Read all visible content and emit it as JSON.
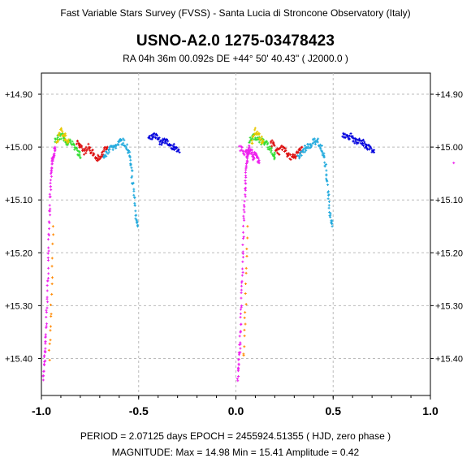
{
  "header": {
    "survey": "Fast Variable Stars Survey (FVSS) - Santa Lucia di Stroncone Observatory (Italy)",
    "star_id": "USNO-A2.0  1275-03478423",
    "coordinates": "RA  04h 36m 00.092s    DE  +44° 50' 40.43\"     ( J2000.0 )"
  },
  "footer": {
    "line1": "PERIOD = 2.07125 days      EPOCH = 2455924.51355  ( HJD, zero phase )",
    "line2": "MAGNITUDE:  Max = 14.98    Min = 15.41    Amplitude = 0.42"
  },
  "colors": {
    "magenta": "#ee22ee",
    "green": "#33dd33",
    "yellow": "#e8c800",
    "orange": "#ff8800",
    "red": "#dd1111",
    "cyan": "#22aadd",
    "blue": "#0000dd",
    "grid": "#bbbbbb"
  },
  "chart_data": {
    "type": "scatter",
    "title": "USNO-A2.0  1275-03478423",
    "xlabel": "",
    "ylabel": "",
    "xlim": [
      -1.0,
      1.0
    ],
    "ylim": [
      14.86,
      15.47
    ],
    "y_inverted": true,
    "grid": true,
    "x_ticks": [
      "-1.0",
      "-0.5",
      "0.0",
      "0.5",
      "1.0"
    ],
    "x_tick_values": [
      -1.0,
      -0.5,
      0.0,
      0.5,
      1.0
    ],
    "y_ticks": [
      "+14.90",
      "+15.00",
      "+15.10",
      "+15.20",
      "+15.30",
      "+15.40"
    ],
    "y_tick_values": [
      14.9,
      15.0,
      15.1,
      15.2,
      15.3,
      15.4
    ],
    "series": [
      {
        "color": "magenta",
        "phase_ranges": [
          [
            -0.01,
            0.01
          ],
          [
            0.08,
            0.12
          ]
        ],
        "x": [
          -0.99,
          -0.985,
          -0.98,
          -0.975,
          -0.97,
          -0.965,
          -0.96,
          -0.955,
          -0.95,
          -0.945,
          -0.94,
          -0.935,
          -0.93,
          0.02,
          0.04,
          0.06,
          0.08,
          0.09,
          0.1,
          0.11,
          0.12
        ],
        "y": [
          15.44,
          15.41,
          15.38,
          15.34,
          15.28,
          15.22,
          15.15,
          15.1,
          15.06,
          15.03,
          15.02,
          15.01,
          15.0,
          15.0,
          15.01,
          15.01,
          15.01,
          15.02,
          15.01,
          15.02,
          15.03
        ]
      },
      {
        "color": "green",
        "x": [
          -0.93,
          -0.91,
          -0.89,
          -0.87,
          -0.85,
          -0.83,
          -0.81,
          -0.8
        ],
        "y": [
          14.99,
          14.98,
          14.98,
          14.99,
          14.99,
          15.0,
          15.01,
          15.02
        ]
      },
      {
        "color": "yellow",
        "x": [
          -0.92,
          -0.9,
          -0.88,
          -0.86
        ],
        "y": [
          14.99,
          14.97,
          14.98,
          14.99
        ]
      },
      {
        "color": "orange",
        "x": [
          -0.96,
          -0.95,
          -0.94
        ],
        "y": [
          15.4,
          15.3,
          15.15
        ]
      },
      {
        "color": "red",
        "x": [
          -0.82,
          -0.8,
          -0.78,
          -0.76,
          -0.74,
          -0.72,
          -0.7,
          -0.68,
          -0.66
        ],
        "y": [
          14.99,
          15.0,
          15.01,
          15.0,
          15.01,
          15.02,
          15.02,
          15.01,
          15.0
        ]
      },
      {
        "color": "cyan",
        "x": [
          -0.68,
          -0.66,
          -0.64,
          -0.62,
          -0.6,
          -0.58,
          -0.56,
          -0.545,
          -0.535,
          -0.525,
          -0.515,
          -0.505
        ],
        "y": [
          15.02,
          15.01,
          15.0,
          15.0,
          14.99,
          14.99,
          15.0,
          15.02,
          15.05,
          15.09,
          15.13,
          15.15
        ]
      },
      {
        "color": "blue",
        "x": [
          -0.45,
          -0.43,
          -0.41,
          -0.39,
          -0.37,
          -0.35,
          -0.33,
          -0.31,
          -0.29
        ],
        "y": [
          14.98,
          14.98,
          14.98,
          14.99,
          14.99,
          14.99,
          15.0,
          15.0,
          15.01
        ]
      }
    ]
  }
}
